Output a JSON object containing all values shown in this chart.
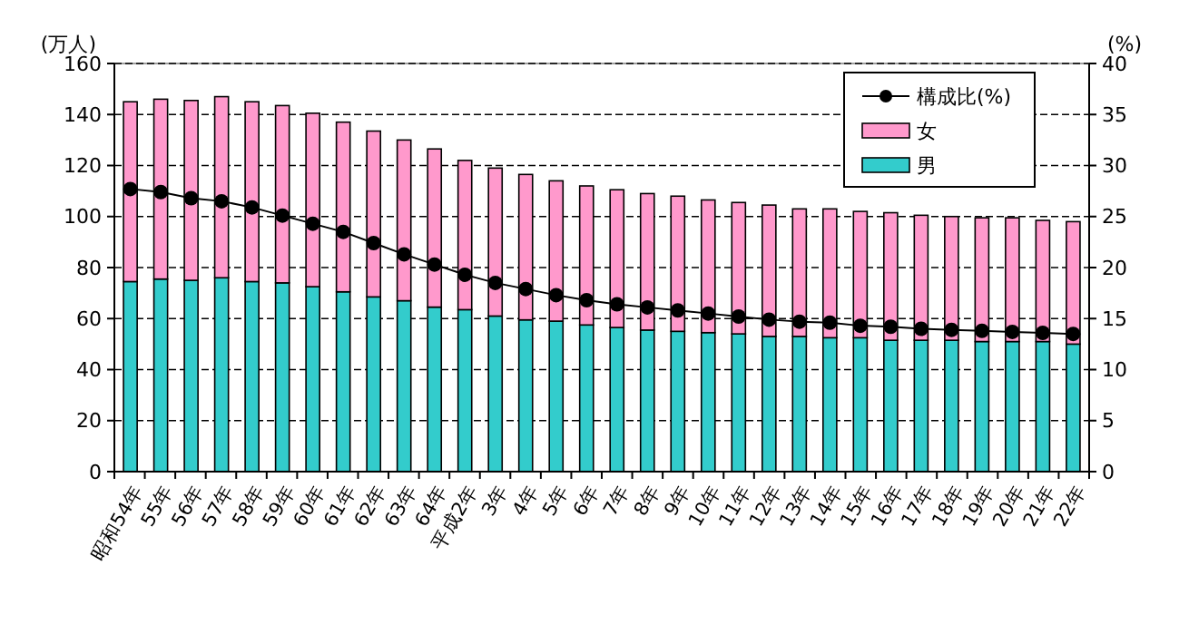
{
  "chart_data": {
    "type": "bar",
    "stacked": true,
    "ylabel": "(万人)",
    "y2label": "(%)",
    "categories": [
      "昭和54年",
      "55年",
      "56年",
      "57年",
      "58年",
      "59年",
      "60年",
      "61年",
      "62年",
      "63年",
      "64年",
      "平成2年",
      "3年",
      "4年",
      "5年",
      "6年",
      "7年",
      "8年",
      "9年",
      "10年",
      "11年",
      "12年",
      "13年",
      "14年",
      "15年",
      "16年",
      "17年",
      "18年",
      "19年",
      "20年",
      "21年",
      "22年"
    ],
    "series": [
      {
        "name": "男",
        "color": "#33cccc",
        "values": [
          74.5,
          75.5,
          75,
          76,
          74.5,
          74,
          72.5,
          70.5,
          68.5,
          67,
          64.5,
          63.5,
          61,
          59.5,
          59,
          57.5,
          56.5,
          55.5,
          55,
          54.5,
          54,
          53,
          53,
          52.5,
          52.5,
          51.5,
          51.5,
          51.5,
          51,
          51,
          51,
          50
        ]
      },
      {
        "name": "女",
        "color": "#ff99cc",
        "values": [
          70.5,
          70.5,
          70.5,
          71,
          70.5,
          69.5,
          68,
          66.5,
          65,
          63,
          62,
          58.5,
          58,
          57,
          55,
          54.5,
          54,
          53.5,
          53,
          52,
          51.5,
          51.5,
          50,
          50.5,
          49.5,
          50,
          49,
          48.5,
          48.5,
          48.5,
          47.5,
          48
        ]
      },
      {
        "name": "構成比(%)",
        "type": "line",
        "axis": "y2",
        "color": "#000000",
        "marker": "circle",
        "values": [
          27.7,
          27.4,
          26.8,
          26.5,
          25.9,
          25.1,
          24.3,
          23.5,
          22.4,
          21.3,
          20.3,
          19.3,
          18.5,
          17.9,
          17.3,
          16.8,
          16.4,
          16.1,
          15.8,
          15.5,
          15.2,
          14.9,
          14.7,
          14.6,
          14.3,
          14.2,
          14.0,
          13.9,
          13.8,
          13.7,
          13.6,
          13.5
        ]
      }
    ],
    "ylim": [
      0,
      160
    ],
    "yticks": [
      0,
      20,
      40,
      60,
      80,
      100,
      120,
      140,
      160
    ],
    "y2lim": [
      0,
      40
    ],
    "y2ticks": [
      0,
      5,
      10,
      15,
      20,
      25,
      30,
      35,
      40
    ],
    "grid": "y",
    "legend": "top right"
  }
}
